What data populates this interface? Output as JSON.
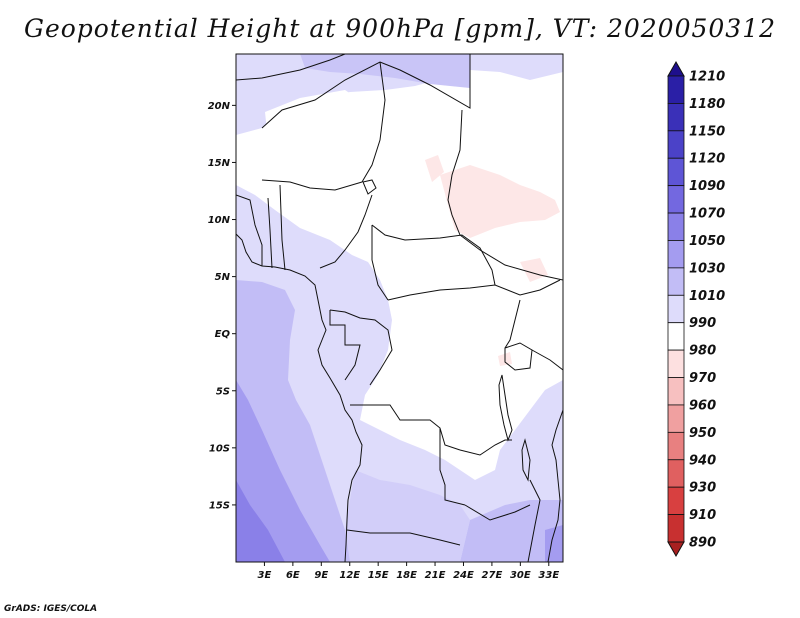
{
  "title": "Geopotential Height at 900hPa [gpm], VT: 2020050312",
  "credit": "GrADS: IGES/COLA",
  "map": {
    "variable": "Geopotential Height",
    "level": "900hPa",
    "units": "gpm",
    "valid_time": "2020050312",
    "lon_range": [
      0,
      34.5
    ],
    "lat_range": [
      -20,
      24.5
    ],
    "lat_ticks": [
      {
        "value": 20,
        "label": "20N"
      },
      {
        "value": 15,
        "label": "15N"
      },
      {
        "value": 10,
        "label": "10N"
      },
      {
        "value": 5,
        "label": "5N"
      },
      {
        "value": 0,
        "label": "EQ"
      },
      {
        "value": -5,
        "label": "5S"
      },
      {
        "value": -10,
        "label": "10S"
      },
      {
        "value": -15,
        "label": "15S"
      }
    ],
    "lon_ticks": [
      {
        "value": 3,
        "label": "3E"
      },
      {
        "value": 6,
        "label": "6E"
      },
      {
        "value": 9,
        "label": "9E"
      },
      {
        "value": 12,
        "label": "12E"
      },
      {
        "value": 15,
        "label": "15E"
      },
      {
        "value": 18,
        "label": "18E"
      },
      {
        "value": 21,
        "label": "21E"
      },
      {
        "value": 24,
        "label": "24E"
      },
      {
        "value": 27,
        "label": "27E"
      },
      {
        "value": 30,
        "label": "30E"
      },
      {
        "value": 33,
        "label": "33E"
      }
    ]
  },
  "colorbar": {
    "labels": [
      "1210",
      "1180",
      "1150",
      "1120",
      "1090",
      "1070",
      "1050",
      "1030",
      "1010",
      "990",
      "980",
      "970",
      "960",
      "950",
      "940",
      "930",
      "910",
      "890"
    ],
    "colors": [
      "#1e0f8c",
      "#2a1fa6",
      "#3a30b8",
      "#4b42c8",
      "#5e55d6",
      "#7368e0",
      "#8a80e8",
      "#a49cf0",
      "#c2bdf6",
      "#dedcfb",
      "#ffffff",
      "#fde0e0",
      "#f7c0c0",
      "#f0a0a0",
      "#e88080",
      "#e06060",
      "#d84040",
      "#c83030",
      "#a82020"
    ]
  }
}
